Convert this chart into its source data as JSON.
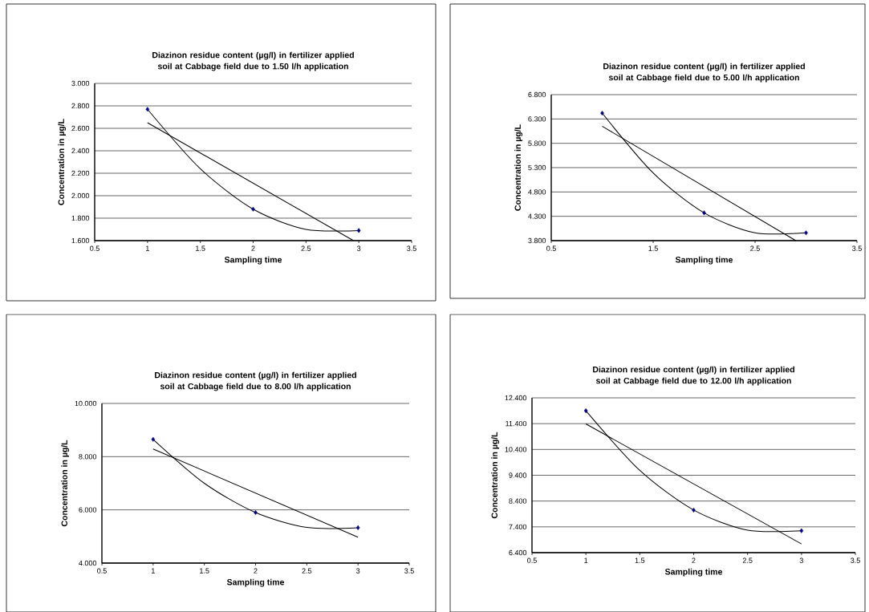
{
  "chart_data": [
    {
      "type": "scatter",
      "title": "Diazinon residue content (µg/l) in fertilizer applied soil at Cabbage field due to 1.50 l/h application",
      "xlabel": "Sampling time",
      "ylabel": "Concentration in  µg/L",
      "grid": "y",
      "xlim": [
        0.5,
        3.5
      ],
      "xticks": [
        0.5,
        1,
        1.5,
        2,
        2.5,
        3,
        3.5
      ],
      "ylim": [
        1.6,
        3.0
      ],
      "yticks": [
        {
          "value": 1.6,
          "label": "1.600"
        },
        {
          "value": 1.8,
          "label": "1.800"
        },
        {
          "value": 2.0,
          "label": "2.000"
        },
        {
          "value": 2.2,
          "label": "2.200"
        },
        {
          "value": 2.4,
          "label": "2.400"
        },
        {
          "value": 2.6,
          "label": "2.600"
        },
        {
          "value": 2.8,
          "label": "2.800"
        },
        {
          "value": 3.0,
          "label": "3.000"
        }
      ],
      "series": [
        {
          "color": "#000080",
          "marker": "diamond",
          "x": [
            1,
            2,
            3
          ],
          "values": [
            2.77,
            1.88,
            1.69
          ]
        },
        {
          "type": "line",
          "color": "#000000",
          "marker": "none",
          "x": [
            1,
            2.95
          ],
          "values": [
            2.65,
            1.6
          ]
        },
        {
          "type": "line",
          "color": "#000000",
          "marker": "none",
          "x": [
            1,
            1.5,
            2,
            2.5,
            3
          ],
          "values": [
            2.77,
            2.24,
            1.88,
            1.7,
            1.69
          ]
        }
      ]
    },
    {
      "type": "scatter",
      "title": "Diazinon residue content (µg/l) in fertilizer applied soil at Cabbage field due to 5.00 l/h application",
      "xlabel": "Sampling time",
      "ylabel": "Concentration in  µg/L",
      "grid": "y",
      "xlim": [
        0.5,
        3.5
      ],
      "xticks": [
        0.5,
        1.5,
        2.5,
        3.5
      ],
      "ylim": [
        3.8,
        6.8
      ],
      "yticks": [
        {
          "value": 3.8,
          "label": "3.800"
        },
        {
          "value": 4.3,
          "label": "4.300"
        },
        {
          "value": 4.8,
          "label": "4.800"
        },
        {
          "value": 5.3,
          "label": "5.300"
        },
        {
          "value": 5.8,
          "label": "5.800"
        },
        {
          "value": 6.3,
          "label": "6.300"
        },
        {
          "value": 6.8,
          "label": "6.800"
        }
      ],
      "series": [
        {
          "color": "#000080",
          "marker": "diamond",
          "x": [
            1,
            2,
            3
          ],
          "values": [
            6.42,
            4.37,
            3.96
          ]
        },
        {
          "type": "line",
          "color": "#000000",
          "marker": "none",
          "x": [
            1,
            2.9
          ],
          "values": [
            6.15,
            3.8
          ]
        },
        {
          "type": "line",
          "color": "#000000",
          "marker": "none",
          "x": [
            1,
            1.5,
            2,
            2.5,
            3
          ],
          "values": [
            6.42,
            5.19,
            4.37,
            3.96,
            3.96
          ]
        }
      ]
    },
    {
      "type": "scatter",
      "title": "Diazinon residue content (µg/l) in fertilizer applied soil at Cabbage field due to 8.00 l/h application",
      "xlabel": "Sampling time",
      "ylabel": "Concentration in  µg/L",
      "grid": "y",
      "xlim": [
        0.5,
        3.5
      ],
      "xticks": [
        0.5,
        1,
        1.5,
        2,
        2.5,
        3,
        3.5
      ],
      "ylim": [
        4,
        10
      ],
      "yticks": [
        {
          "value": 4,
          "label": "4.000"
        },
        {
          "value": 6,
          "label": "6.000"
        },
        {
          "value": 8,
          "label": "8.000"
        },
        {
          "value": 10,
          "label": "10.000"
        }
      ],
      "series": [
        {
          "color": "#000080",
          "marker": "diamond",
          "x": [
            1,
            2,
            3
          ],
          "values": [
            8.65,
            5.9,
            5.33
          ]
        },
        {
          "type": "line",
          "color": "#000000",
          "marker": "none",
          "x": [
            1,
            3
          ],
          "values": [
            8.29,
            4.97
          ]
        },
        {
          "type": "line",
          "color": "#000000",
          "marker": "none",
          "x": [
            1,
            1.5,
            2,
            2.5,
            3
          ],
          "values": [
            8.65,
            7.0,
            5.9,
            5.34,
            5.33
          ]
        }
      ]
    },
    {
      "type": "scatter",
      "title": "Diazinon residue content (µg/l) in fertilizer applied soil at Cabbage field due to 12.00 l/h application",
      "xlabel": "Sampling time",
      "ylabel": "Concentration in  µg/L",
      "grid": "y",
      "xlim": [
        0.5,
        3.5
      ],
      "xticks": [
        0.5,
        1,
        1.5,
        2,
        2.5,
        3,
        3.5
      ],
      "ylim": [
        6.4,
        12.4
      ],
      "yticks": [
        {
          "value": 6.4,
          "label": "6.400"
        },
        {
          "value": 7.4,
          "label": "7.400"
        },
        {
          "value": 8.4,
          "label": "8.400"
        },
        {
          "value": 9.4,
          "label": "9.400"
        },
        {
          "value": 10.4,
          "label": "10.400"
        },
        {
          "value": 11.4,
          "label": "11.400"
        },
        {
          "value": 12.4,
          "label": "12.400"
        }
      ],
      "series": [
        {
          "color": "#000080",
          "marker": "diamond",
          "x": [
            1,
            2,
            3
          ],
          "values": [
            11.9,
            8.05,
            7.25
          ]
        },
        {
          "type": "line",
          "color": "#000000",
          "marker": "none",
          "x": [
            1,
            3
          ],
          "values": [
            11.39,
            6.74
          ]
        },
        {
          "type": "line",
          "color": "#000000",
          "marker": "none",
          "x": [
            1,
            1.5,
            2,
            2.5,
            3
          ],
          "values": [
            11.9,
            9.59,
            8.05,
            7.27,
            7.25
          ]
        }
      ]
    }
  ]
}
